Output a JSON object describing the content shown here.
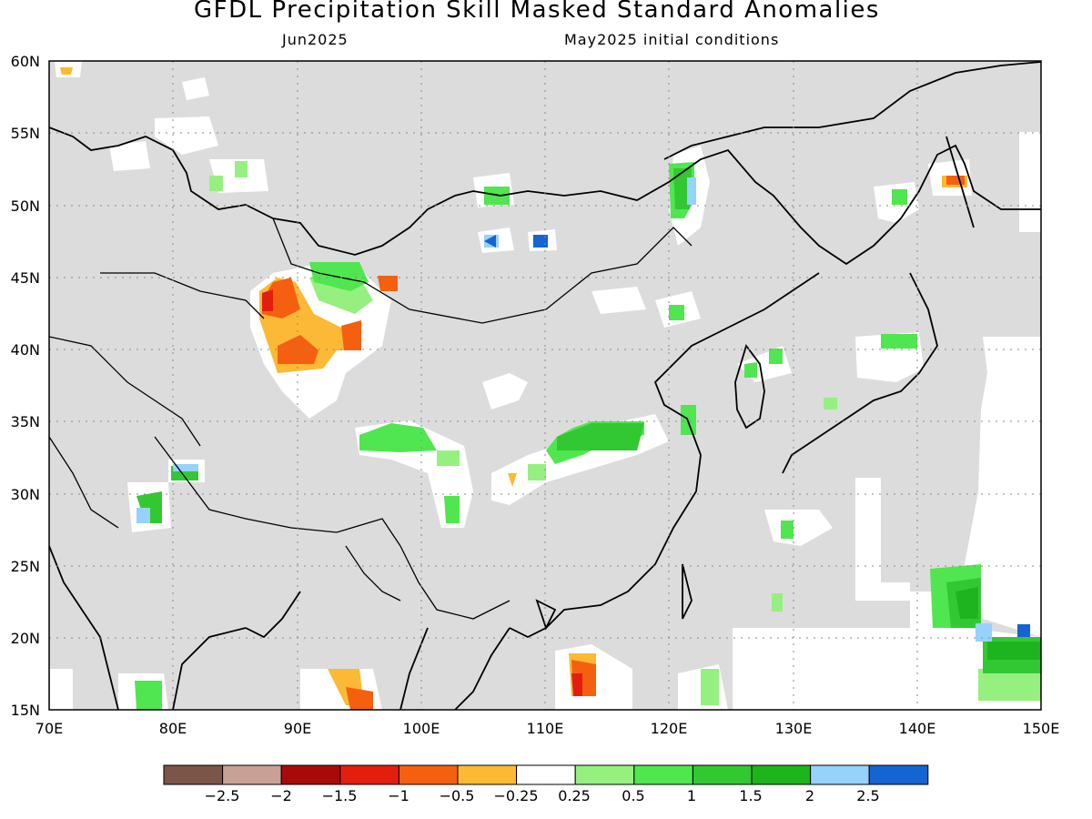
{
  "title": "GFDL Precipitation Skill Masked Standard Anomalies",
  "subtitle_left": "Jun2025",
  "subtitle_right": "May2025 initial conditions",
  "map": {
    "lon_range": [
      70,
      150
    ],
    "lat_range": [
      15,
      60
    ],
    "lat_labels": [
      "60N",
      "55N",
      "50N",
      "45N",
      "40N",
      "35N",
      "30N",
      "25N",
      "20N",
      "15N"
    ],
    "lon_labels": [
      "70E",
      "80E",
      "90E",
      "100E",
      "110E",
      "120E",
      "130E",
      "140E",
      "150E"
    ],
    "background_color": "#dcdcdc",
    "grid": "dotted"
  },
  "colorbar": {
    "colors": [
      "#7a5548",
      "#c8a095",
      "#a80a0a",
      "#e41e0f",
      "#f4600f",
      "#fbb935",
      "#ffffff",
      "#96f080",
      "#50e650",
      "#32c832",
      "#1eb41e",
      "#96d2fa",
      "#1464d2"
    ],
    "labels": [
      "−2.5",
      "−2",
      "−1.5",
      "−1",
      "−0.5",
      "−0.25",
      "0.25",
      "0.5",
      "1",
      "1.5",
      "2",
      "2.5"
    ]
  }
}
